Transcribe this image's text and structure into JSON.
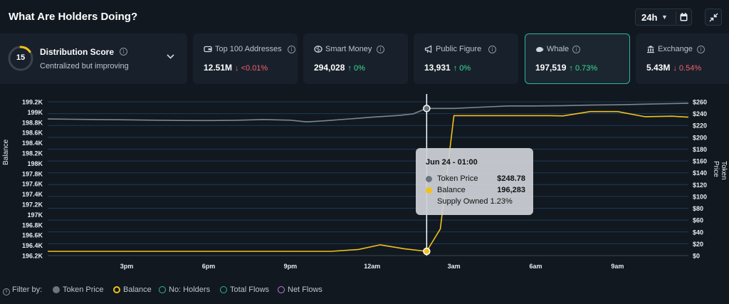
{
  "header": {
    "title": "What Are Holders Doing?",
    "period": "24h",
    "icons": [
      "chevron-down-icon",
      "calendar-icon",
      "collapse-icon"
    ]
  },
  "distribution": {
    "score": "15",
    "score_fraction": 0.15,
    "title": "Distribution Score",
    "subtitle": "Centralized but improving"
  },
  "cards": [
    {
      "title": "Top 100 Addresses",
      "value": "12.51M",
      "change": "<0.01%",
      "direction": "down",
      "arrow": "↓",
      "icon": "wallet-icon"
    },
    {
      "title": "Smart Money",
      "value": "294,028",
      "change": "0%",
      "direction": "up",
      "arrow": "↑",
      "icon": "brain-icon"
    },
    {
      "title": "Public Figure",
      "value": "13,931",
      "change": "0%",
      "direction": "up",
      "arrow": "↑",
      "icon": "megaphone-icon"
    },
    {
      "title": "Whale",
      "value": "197,519",
      "change": "0.73%",
      "direction": "up",
      "arrow": "↑",
      "icon": "whale-icon"
    },
    {
      "title": "Exchange",
      "value": "5.43M",
      "change": "0.54%",
      "direction": "down",
      "arrow": "↓",
      "icon": "bank-icon"
    }
  ],
  "chart_data": {
    "type": "line",
    "ylabel": "Balance",
    "y2label": "Token Price",
    "x_tick_labels": [
      "3pm",
      "6pm",
      "9pm",
      "12am",
      "3am",
      "6am",
      "9am"
    ],
    "x_ticks": [
      15,
      18,
      21,
      24,
      27,
      30,
      33
    ],
    "xlim": [
      12.1,
      35.6
    ],
    "y_tick_labels": [
      "199.2K",
      "199K",
      "198.8K",
      "198.6K",
      "198.4K",
      "198.2K",
      "198K",
      "197.8K",
      "197.6K",
      "197.4K",
      "197.2K",
      "197K",
      "196.8K",
      "196.6K",
      "196.4K",
      "196.2K"
    ],
    "y_ticks": [
      199200,
      199000,
      198800,
      198600,
      198400,
      198200,
      198000,
      197800,
      197600,
      197400,
      197200,
      197000,
      196800,
      196600,
      196400,
      196200
    ],
    "ylim": [
      196200,
      199200
    ],
    "y2_tick_labels": [
      "$260",
      "$240",
      "$220",
      "$200",
      "$180",
      "$160",
      "$140",
      "$120",
      "$100",
      "$80",
      "$60",
      "$40",
      "$20",
      "$0"
    ],
    "y2_ticks": [
      260,
      240,
      220,
      200,
      180,
      160,
      140,
      120,
      100,
      80,
      60,
      40,
      20,
      0
    ],
    "y2lim": [
      0,
      260
    ],
    "grid": true,
    "series": [
      {
        "name": "Token Price",
        "axis": "right",
        "color": "#7c8791",
        "points": [
          [
            12.1,
            231
          ],
          [
            13,
            230.5
          ],
          [
            14,
            230
          ],
          [
            15,
            229.5
          ],
          [
            16,
            229
          ],
          [
            17,
            228.5
          ],
          [
            18,
            228.3
          ],
          [
            19,
            228.8
          ],
          [
            20,
            230
          ],
          [
            21,
            229
          ],
          [
            21.6,
            226
          ],
          [
            22.3,
            228
          ],
          [
            23,
            230.5
          ],
          [
            24,
            234
          ],
          [
            25,
            237
          ],
          [
            25.5,
            239.5
          ],
          [
            26,
            248.78
          ],
          [
            27,
            248.8
          ],
          [
            28,
            251
          ],
          [
            29,
            253
          ],
          [
            30,
            253
          ],
          [
            31,
            253.5
          ],
          [
            32,
            254.5
          ],
          [
            33,
            255
          ],
          [
            34,
            256
          ],
          [
            35,
            257
          ],
          [
            35.6,
            257.5
          ]
        ]
      },
      {
        "name": "Balance",
        "axis": "left",
        "color": "#f2c01d",
        "points": [
          [
            12.1,
            196284
          ],
          [
            21.5,
            196284
          ],
          [
            22.5,
            196284
          ],
          [
            23.5,
            196320
          ],
          [
            24.3,
            196410
          ],
          [
            25.2,
            196330
          ],
          [
            26,
            196283
          ],
          [
            26.5,
            196720
          ],
          [
            27,
            198930
          ],
          [
            29,
            198930
          ],
          [
            30.5,
            198930
          ],
          [
            31,
            198925
          ],
          [
            32,
            199010
          ],
          [
            33,
            199010
          ],
          [
            34,
            198910
          ],
          [
            35,
            198920
          ],
          [
            35.6,
            198900
          ]
        ]
      }
    ],
    "highlight": {
      "time": "Jun 24 - 01:00",
      "x": 26,
      "token_price": "$248.78",
      "balance": "196,283",
      "supply_owned": "1.23%"
    }
  },
  "tooltip": {
    "title": "Jun 24 - 01:00",
    "price_label": "Token Price",
    "price_value": "$248.78",
    "balance_label": "Balance",
    "balance_value": "196,283",
    "supply_text": "Supply Owned 1.23%"
  },
  "legend": {
    "filter_label": "Filter by:",
    "items": [
      {
        "label": "Token Price",
        "color": "#7c8791",
        "active": true
      },
      {
        "label": "Balance",
        "color": "#f2c01d",
        "active": true
      },
      {
        "label": "No: Holders",
        "color": "#2fb3a0",
        "active": false
      },
      {
        "label": "Total Flows",
        "color": "#2fb3a0",
        "active": false
      },
      {
        "label": "Net Flows",
        "color": "#c27bd8",
        "active": false
      }
    ]
  }
}
